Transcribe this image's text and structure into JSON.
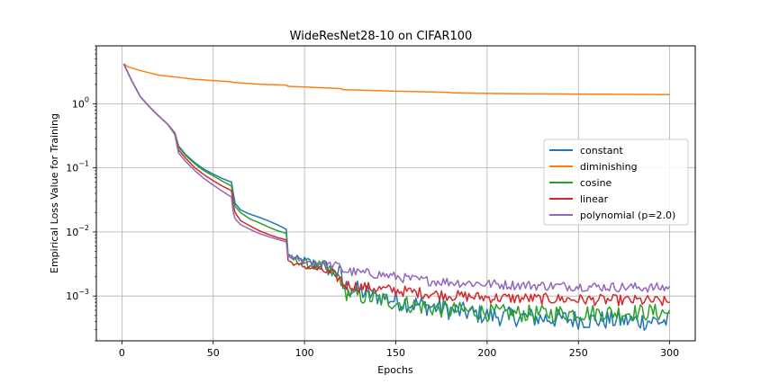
{
  "chart_data": {
    "type": "line",
    "title": "WideResNet28-10 on CIFAR100",
    "xlabel": "Epochs",
    "ylabel": "Empirical Loss Value for Training",
    "yscale": "log",
    "xlim": [
      -14,
      314
    ],
    "ylim": [
      0.0002,
      8
    ],
    "xticks": [
      0,
      50,
      100,
      150,
      200,
      250,
      300
    ],
    "xtick_labels": [
      "0",
      "50",
      "100",
      "150",
      "200",
      "250",
      "300"
    ],
    "yticks": [
      0.001,
      0.01,
      0.1,
      1
    ],
    "ytick_labels": [
      {
        "base": "10",
        "exp": "−3"
      },
      {
        "base": "10",
        "exp": "−2"
      },
      {
        "base": "10",
        "exp": "−1"
      },
      {
        "base": "10",
        "exp": "0"
      }
    ],
    "grid": true,
    "legend_position": "center-right",
    "series": [
      {
        "name": "constant",
        "color": "#1f77b4",
        "points": [
          [
            1,
            4.2
          ],
          [
            5,
            2.4
          ],
          [
            10,
            1.3
          ],
          [
            15,
            0.9
          ],
          [
            20,
            0.65
          ],
          [
            25,
            0.48
          ],
          [
            29,
            0.35
          ],
          [
            31,
            0.22
          ],
          [
            35,
            0.16
          ],
          [
            40,
            0.12
          ],
          [
            45,
            0.095
          ],
          [
            50,
            0.08
          ],
          [
            55,
            0.068
          ],
          [
            60,
            0.06
          ],
          [
            61,
            0.04
          ],
          [
            62,
            0.028
          ],
          [
            65,
            0.022
          ],
          [
            70,
            0.019
          ],
          [
            75,
            0.017
          ],
          [
            80,
            0.015
          ],
          [
            85,
            0.013
          ],
          [
            90,
            0.011
          ],
          [
            91,
            0.0045
          ],
          [
            95,
            0.0038
          ],
          [
            100,
            0.0035
          ],
          [
            105,
            0.0032
          ],
          [
            110,
            0.003
          ],
          [
            115,
            0.0025
          ],
          [
            120,
            0.0021
          ],
          [
            121,
            0.0014
          ],
          [
            125,
            0.0013
          ],
          [
            130,
            0.0012
          ],
          [
            135,
            0.00108
          ],
          [
            140,
            0.001
          ],
          [
            145,
            0.00092
          ],
          [
            150,
            0.00085
          ],
          [
            160,
            0.00075
          ],
          [
            170,
            0.00068
          ],
          [
            180,
            0.0006
          ],
          [
            190,
            0.00055
          ],
          [
            200,
            0.0005
          ],
          [
            210,
            0.00048
          ],
          [
            220,
            0.00047
          ],
          [
            230,
            0.00045
          ],
          [
            240,
            0.00044
          ],
          [
            250,
            0.00043
          ],
          [
            260,
            0.00042
          ],
          [
            270,
            0.00042
          ],
          [
            280,
            0.00041
          ],
          [
            290,
            0.00041
          ],
          [
            300,
            0.0004
          ]
        ],
        "jitter": 0.28
      },
      {
        "name": "diminishing",
        "color": "#ff7f0e",
        "points": [
          [
            1,
            4.2
          ],
          [
            3,
            3.8
          ],
          [
            10,
            3.3
          ],
          [
            20,
            2.8
          ],
          [
            30,
            2.6
          ],
          [
            40,
            2.4
          ],
          [
            50,
            2.3
          ],
          [
            60,
            2.2
          ],
          [
            61,
            2.15
          ],
          [
            75,
            2.02
          ],
          [
            90,
            1.95
          ],
          [
            91,
            1.87
          ],
          [
            105,
            1.8
          ],
          [
            120,
            1.72
          ],
          [
            121,
            1.66
          ],
          [
            140,
            1.6
          ],
          [
            150,
            1.57
          ],
          [
            160,
            1.55
          ],
          [
            180,
            1.5
          ],
          [
            181,
            1.48
          ],
          [
            200,
            1.45
          ],
          [
            220,
            1.43
          ],
          [
            240,
            1.42
          ],
          [
            260,
            1.41
          ],
          [
            280,
            1.4
          ],
          [
            300,
            1.39
          ]
        ],
        "jitter": 0
      },
      {
        "name": "cosine",
        "color": "#2ca02c",
        "points": [
          [
            1,
            4.2
          ],
          [
            5,
            2.4
          ],
          [
            10,
            1.3
          ],
          [
            15,
            0.9
          ],
          [
            20,
            0.65
          ],
          [
            25,
            0.48
          ],
          [
            29,
            0.35
          ],
          [
            31,
            0.21
          ],
          [
            35,
            0.155
          ],
          [
            40,
            0.115
          ],
          [
            45,
            0.09
          ],
          [
            50,
            0.075
          ],
          [
            55,
            0.062
          ],
          [
            60,
            0.052
          ],
          [
            61,
            0.033
          ],
          [
            62,
            0.025
          ],
          [
            65,
            0.02
          ],
          [
            70,
            0.016
          ],
          [
            75,
            0.014
          ],
          [
            80,
            0.012
          ],
          [
            85,
            0.0105
          ],
          [
            90,
            0.0095
          ],
          [
            91,
            0.0042
          ],
          [
            95,
            0.0036
          ],
          [
            100,
            0.0032
          ],
          [
            105,
            0.003
          ],
          [
            110,
            0.0028
          ],
          [
            115,
            0.0023
          ],
          [
            120,
            0.0019
          ],
          [
            121,
            0.0012
          ],
          [
            125,
            0.0011
          ],
          [
            130,
            0.001
          ],
          [
            135,
            0.00095
          ],
          [
            140,
            0.0009
          ],
          [
            145,
            0.00085
          ],
          [
            150,
            0.0008
          ],
          [
            160,
            0.00072
          ],
          [
            170,
            0.00065
          ],
          [
            180,
            0.0006
          ],
          [
            190,
            0.00058
          ],
          [
            200,
            0.00055
          ],
          [
            210,
            0.00054
          ],
          [
            220,
            0.00053
          ],
          [
            230,
            0.00053
          ],
          [
            240,
            0.00054
          ],
          [
            250,
            0.00054
          ],
          [
            260,
            0.00055
          ],
          [
            270,
            0.00055
          ],
          [
            280,
            0.00055
          ],
          [
            290,
            0.00056
          ],
          [
            300,
            0.00055
          ]
        ],
        "jitter": 0.25
      },
      {
        "name": "linear",
        "color": "#d62728",
        "points": [
          [
            1,
            4.2
          ],
          [
            5,
            2.4
          ],
          [
            10,
            1.3
          ],
          [
            15,
            0.9
          ],
          [
            20,
            0.65
          ],
          [
            25,
            0.48
          ],
          [
            29,
            0.34
          ],
          [
            31,
            0.19
          ],
          [
            35,
            0.14
          ],
          [
            40,
            0.1
          ],
          [
            45,
            0.078
          ],
          [
            50,
            0.063
          ],
          [
            55,
            0.052
          ],
          [
            60,
            0.044
          ],
          [
            61,
            0.026
          ],
          [
            62,
            0.02
          ],
          [
            65,
            0.015
          ],
          [
            70,
            0.0125
          ],
          [
            75,
            0.0105
          ],
          [
            80,
            0.0092
          ],
          [
            85,
            0.0082
          ],
          [
            90,
            0.0075
          ],
          [
            91,
            0.0036
          ],
          [
            95,
            0.0031
          ],
          [
            100,
            0.0029
          ],
          [
            105,
            0.0027
          ],
          [
            110,
            0.0025
          ],
          [
            115,
            0.0022
          ],
          [
            120,
            0.0018
          ],
          [
            121,
            0.0015
          ],
          [
            130,
            0.0014
          ],
          [
            140,
            0.0013
          ],
          [
            150,
            0.00122
          ],
          [
            160,
            0.00115
          ],
          [
            170,
            0.00108
          ],
          [
            180,
            0.00102
          ],
          [
            190,
            0.00098
          ],
          [
            200,
            0.00095
          ],
          [
            210,
            0.00093
          ],
          [
            220,
            0.00092
          ],
          [
            230,
            0.0009
          ],
          [
            240,
            0.0009
          ],
          [
            250,
            0.00088
          ],
          [
            260,
            0.00087
          ],
          [
            270,
            0.00086
          ],
          [
            280,
            0.00085
          ],
          [
            290,
            0.00084
          ],
          [
            300,
            0.0008
          ]
        ],
        "jitter": 0.16
      },
      {
        "name": "polynomial (p=2.0)",
        "color": "#9467bd",
        "points": [
          [
            1,
            4.2
          ],
          [
            5,
            2.4
          ],
          [
            10,
            1.3
          ],
          [
            15,
            0.9
          ],
          [
            20,
            0.65
          ],
          [
            25,
            0.48
          ],
          [
            29,
            0.33
          ],
          [
            31,
            0.17
          ],
          [
            35,
            0.125
          ],
          [
            40,
            0.09
          ],
          [
            45,
            0.068
          ],
          [
            50,
            0.054
          ],
          [
            55,
            0.043
          ],
          [
            60,
            0.035
          ],
          [
            61,
            0.02
          ],
          [
            62,
            0.016
          ],
          [
            65,
            0.013
          ],
          [
            70,
            0.011
          ],
          [
            75,
            0.0095
          ],
          [
            80,
            0.0085
          ],
          [
            85,
            0.0077
          ],
          [
            90,
            0.007
          ],
          [
            91,
            0.0042
          ],
          [
            95,
            0.0038
          ],
          [
            100,
            0.0035
          ],
          [
            105,
            0.0033
          ],
          [
            110,
            0.0032
          ],
          [
            115,
            0.003
          ],
          [
            120,
            0.0029
          ],
          [
            121,
            0.0025
          ],
          [
            130,
            0.0023
          ],
          [
            140,
            0.0022
          ],
          [
            150,
            0.002
          ],
          [
            160,
            0.0018
          ],
          [
            170,
            0.00172
          ],
          [
            180,
            0.00165
          ],
          [
            190,
            0.0016
          ],
          [
            200,
            0.00155
          ],
          [
            210,
            0.0015
          ],
          [
            220,
            0.00148
          ],
          [
            230,
            0.00145
          ],
          [
            240,
            0.00143
          ],
          [
            250,
            0.00142
          ],
          [
            260,
            0.0014
          ],
          [
            270,
            0.00138
          ],
          [
            280,
            0.00137
          ],
          [
            290,
            0.00135
          ],
          [
            300,
            0.00135
          ]
        ],
        "jitter": 0.14
      }
    ]
  }
}
